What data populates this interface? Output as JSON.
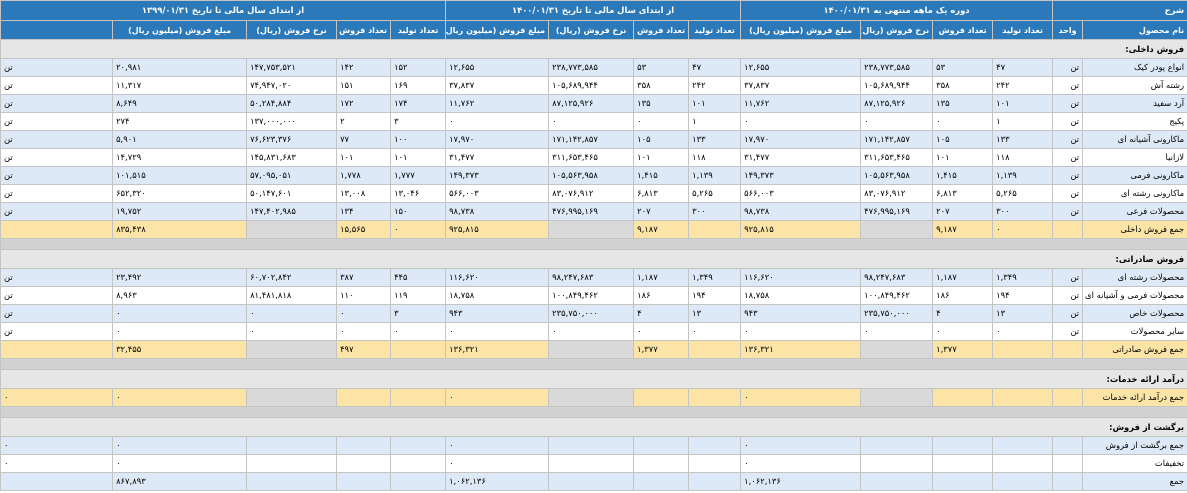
{
  "header": {
    "sharh": "شرح",
    "period1": "دوره یک ماهه منتهی به ۱۴۰۰/۰۱/۳۱",
    "period2": "از ابتدای سال مالی تا تاریخ ۱۴۰۰/۰۱/۳۱",
    "period3": "از ابتدای سال مالی تا تاریخ ۱۳۹۹/۰۱/۳۱",
    "product_name": "نام محصول",
    "unit": "واحد",
    "production_count": "تعداد تولید",
    "sales_count": "تعداد فروش",
    "sales_rate": "نرخ فروش (ریال)",
    "sales_amount": "مبلغ فروش (میلیون ریال)"
  },
  "rows": [
    {
      "type": "section",
      "label": "فروش داخلی:"
    },
    {
      "type": "data",
      "name": "انواع پودر کیک",
      "unit": "تن",
      "p1": [
        "۴۷",
        "۵۳",
        "۲۳۸,۷۷۳,۵۸۵",
        "۱۲,۶۵۵"
      ],
      "p2": [
        "۴۷",
        "۵۳",
        "۲۳۸,۷۷۳,۵۸۵",
        "۱۲,۶۵۵"
      ],
      "p3": [
        "۱۵۲",
        "۱۴۲",
        "۱۴۷,۷۵۳,۵۲۱",
        "۲۰,۹۸۱"
      ],
      "edge": "تن"
    },
    {
      "type": "data",
      "name": "رشته آش",
      "unit": "تن",
      "p1": [
        "۲۴۲",
        "۳۵۸",
        "۱۰۵,۶۸۹,۹۴۴",
        "۳۷,۸۳۷"
      ],
      "p2": [
        "۲۴۲",
        "۳۵۸",
        "۱۰۵,۶۸۹,۹۴۴",
        "۳۷,۸۳۷"
      ],
      "p3": [
        "۱۶۹",
        "۱۵۱",
        "۷۴,۹۴۷,۰۲۰",
        "۱۱,۳۱۷"
      ],
      "edge": "تن"
    },
    {
      "type": "data",
      "name": "آرد سفید",
      "unit": "تن",
      "p1": [
        "۱۰۱",
        "۱۳۵",
        "۸۷,۱۲۵,۹۲۶",
        "۱۱,۷۶۲"
      ],
      "p2": [
        "۱۰۱",
        "۱۳۵",
        "۸۷,۱۲۵,۹۲۶",
        "۱۱,۷۶۲"
      ],
      "p3": [
        "۱۷۴",
        "۱۷۲",
        "۵۰,۲۸۴,۸۸۴",
        "۸,۶۴۹"
      ],
      "edge": "تن"
    },
    {
      "type": "data",
      "name": "پکیج",
      "unit": "تن",
      "p1": [
        "۱",
        "۰",
        "۰",
        "۰"
      ],
      "p2": [
        "۱",
        "۰",
        "۰",
        "۰"
      ],
      "p3": [
        "۳",
        "۲",
        "۱۳۷,۰۰۰,۰۰۰",
        "۲۷۴"
      ],
      "edge": "تن"
    },
    {
      "type": "data",
      "name": "ماکارونی آشیانه ای",
      "unit": "تن",
      "p1": [
        "۱۳۳",
        "۱۰۵",
        "۱۷۱,۱۴۲,۸۵۷",
        "۱۷,۹۷۰"
      ],
      "p2": [
        "۱۳۳",
        "۱۰۵",
        "۱۷۱,۱۴۲,۸۵۷",
        "۱۷,۹۷۰"
      ],
      "p3": [
        "۱۰۰",
        "۷۷",
        "۷۶,۶۲۳,۳۷۶",
        "۵,۹۰۱"
      ],
      "edge": "تن"
    },
    {
      "type": "data",
      "name": "لازانیا",
      "unit": "تن",
      "p1": [
        "۱۱۸",
        "۱۰۱",
        "۳۱۱,۶۵۳,۴۶۵",
        "۳۱,۴۷۷"
      ],
      "p2": [
        "۱۱۸",
        "۱۰۱",
        "۳۱۱,۶۵۳,۴۶۵",
        "۳۱,۴۷۷"
      ],
      "p3": [
        "۱۰۱",
        "۱۰۱",
        "۱۴۵,۸۳۱,۶۸۳",
        "۱۴,۷۲۹"
      ],
      "edge": "تن"
    },
    {
      "type": "data",
      "name": "ماکارونی فرمی",
      "unit": "تن",
      "p1": [
        "۱,۱۳۹",
        "۱,۴۱۵",
        "۱۰۵,۵۶۳,۹۵۸",
        "۱۴۹,۳۷۳"
      ],
      "p2": [
        "۱,۱۳۹",
        "۱,۴۱۵",
        "۱۰۵,۵۶۳,۹۵۸",
        "۱۴۹,۳۷۳"
      ],
      "p3": [
        "۱,۷۷۷",
        "۱,۷۷۸",
        "۵۷,۰۹۵,۰۵۱",
        "۱۰۱,۵۱۵"
      ],
      "edge": "تن"
    },
    {
      "type": "data",
      "name": "ماکارونی رشته ای",
      "unit": "تن",
      "p1": [
        "۵,۲۶۵",
        "۶,۸۱۳",
        "۸۳,۰۷۶,۹۱۲",
        "۵۶۶,۰۰۳"
      ],
      "p2": [
        "۵,۲۶۵",
        "۶,۸۱۳",
        "۸۳,۰۷۶,۹۱۲",
        "۵۶۶,۰۰۳"
      ],
      "p3": [
        "۱۳,۰۴۶",
        "۱۳,۰۰۸",
        "۵۰,۱۴۷,۶۰۱",
        "۶۵۲,۳۲۰"
      ],
      "edge": "تن"
    },
    {
      "type": "data",
      "name": "محصولات فرعی",
      "unit": "تن",
      "p1": [
        "۳۰۰",
        "۲۰۷",
        "۴۷۶,۹۹۵,۱۶۹",
        "۹۸,۷۳۸"
      ],
      "p2": [
        "۳۰۰",
        "۲۰۷",
        "۴۷۶,۹۹۵,۱۶۹",
        "۹۸,۷۳۸"
      ],
      "p3": [
        "۱۵۰",
        "۱۳۴",
        "۱۴۷,۴۰۲,۹۸۵",
        "۱۹,۷۵۲"
      ],
      "edge": "تن"
    },
    {
      "type": "total",
      "name": "جمع فروش داخلی",
      "p1": [
        "۰",
        "۹,۱۸۷",
        "",
        "۹۲۵,۸۱۵"
      ],
      "p2": [
        "",
        "۹,۱۸۷",
        "",
        "۹۲۵,۸۱۵"
      ],
      "p3": [
        "۰",
        "۱۵,۵۶۵",
        "",
        "۸۳۵,۴۳۸"
      ],
      "edge": ""
    },
    {
      "type": "sep"
    },
    {
      "type": "section",
      "label": "فروش صادراتی:"
    },
    {
      "type": "data",
      "name": "محصولات رشته ای",
      "unit": "تن",
      "p1": [
        "۱,۳۴۹",
        "۱,۱۸۷",
        "۹۸,۲۴۷,۶۸۳",
        "۱۱۶,۶۲۰"
      ],
      "p2": [
        "۱,۳۴۹",
        "۱,۱۸۷",
        "۹۸,۲۴۷,۶۸۳",
        "۱۱۶,۶۲۰"
      ],
      "p3": [
        "۴۴۵",
        "۳۸۷",
        "۶۰,۷۰۲,۸۴۲",
        "۲۳,۴۹۲"
      ],
      "edge": "تن"
    },
    {
      "type": "data",
      "name": "محصولات فرمی و آشیانه ای",
      "unit": "تن",
      "p1": [
        "۱۹۴",
        "۱۸۶",
        "۱۰۰,۸۴۹,۴۶۲",
        "۱۸,۷۵۸"
      ],
      "p2": [
        "۱۹۴",
        "۱۸۶",
        "۱۰۰,۸۴۹,۴۶۲",
        "۱۸,۷۵۸"
      ],
      "p3": [
        "۱۱۹",
        "۱۱۰",
        "۸۱,۴۸۱,۸۱۸",
        "۸,۹۶۳"
      ],
      "edge": "تن"
    },
    {
      "type": "data",
      "name": "محصولات خاص",
      "unit": "تن",
      "p1": [
        "۱۳",
        "۴",
        "۲۳۵,۷۵۰,۰۰۰",
        "۹۴۳"
      ],
      "p2": [
        "۱۳",
        "۴",
        "۲۳۵,۷۵۰,۰۰۰",
        "۹۴۳"
      ],
      "p3": [
        "۳",
        "۰",
        "۰",
        "۰"
      ],
      "edge": "تن"
    },
    {
      "type": "data",
      "name": "سایر محصولات",
      "unit": "تن",
      "p1": [
        "۰",
        "۰",
        "۰",
        "۰"
      ],
      "p2": [
        "۰",
        "۰",
        "۰",
        "۰"
      ],
      "p3": [
        "۰",
        "۰",
        "۰",
        "۰"
      ],
      "edge": "تن"
    },
    {
      "type": "total",
      "name": "جمع فروش صادراتی",
      "p1": [
        "",
        "۱,۳۷۷",
        "",
        "۱۳۶,۳۲۱"
      ],
      "p2": [
        "",
        "۱,۳۷۷",
        "",
        "۱۳۶,۳۲۱"
      ],
      "p3": [
        "",
        "۴۹۷",
        "",
        "۳۲,۴۵۵"
      ],
      "edge": ""
    },
    {
      "type": "sep"
    },
    {
      "type": "section",
      "label": "درآمد ارائه خدمات:"
    },
    {
      "type": "total",
      "name": "جمع درآمد ارائه خدمات",
      "p1": [
        "",
        "",
        "",
        "۰"
      ],
      "p2": [
        "",
        "",
        "",
        "۰"
      ],
      "p3": [
        "",
        "",
        "",
        "۰"
      ],
      "edge": "۰"
    },
    {
      "type": "sep"
    },
    {
      "type": "section",
      "label": "برگشت از فروش:"
    },
    {
      "type": "data",
      "name": "جمع برگشت از فروش",
      "unit": "",
      "p1": [
        "",
        "",
        "",
        "۰"
      ],
      "p2": [
        "",
        "",
        "",
        "۰"
      ],
      "p3": [
        "",
        "",
        "",
        "۰"
      ],
      "edge": "۰"
    },
    {
      "type": "data",
      "name": "تخفیفات",
      "unit": "",
      "p1": [
        "",
        "",
        "",
        "۰"
      ],
      "p2": [
        "",
        "",
        "",
        "۰"
      ],
      "p3": [
        "",
        "",
        "",
        "۰"
      ],
      "edge": "۰"
    },
    {
      "type": "data",
      "name": "جمع",
      "unit": "",
      "p1": [
        "",
        "",
        "",
        "۱,۰۶۲,۱۳۶"
      ],
      "p2": [
        "",
        "",
        "",
        "۱,۰۶۲,۱۳۶"
      ],
      "p3": [
        "",
        "",
        "",
        "۸۶۷,۸۹۳"
      ],
      "edge": ""
    }
  ]
}
